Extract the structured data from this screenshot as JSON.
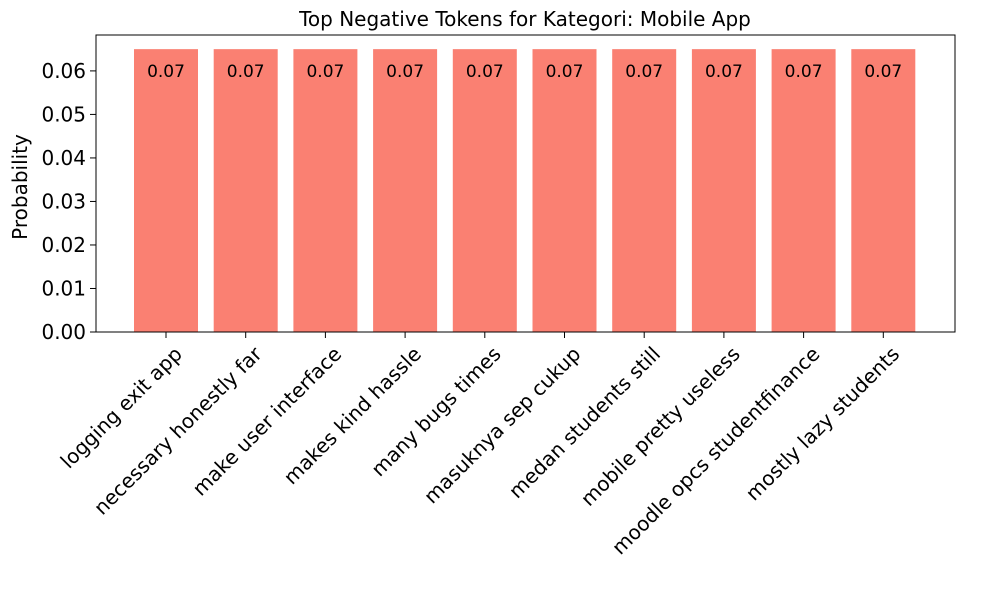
{
  "chart_data": {
    "type": "bar",
    "title": "Top Negative Tokens for Kategori: Mobile App",
    "xlabel": "",
    "ylabel": "Probability",
    "categories": [
      "logging exit app",
      "necessary honestly far",
      "make user interface",
      "makes kind hassle",
      "many bugs times",
      "masuknya sep cukup",
      "medan students still",
      "mobile pretty useless",
      "moodle opcs studentfinance",
      "mostly lazy students"
    ],
    "values": [
      0.065,
      0.065,
      0.065,
      0.065,
      0.065,
      0.065,
      0.065,
      0.065,
      0.065,
      0.065
    ],
    "data_labels": [
      "0.07",
      "0.07",
      "0.07",
      "0.07",
      "0.07",
      "0.07",
      "0.07",
      "0.07",
      "0.07",
      "0.07"
    ],
    "ylim": [
      0,
      0.06825
    ],
    "yticks": [
      "0.00",
      "0.01",
      "0.02",
      "0.03",
      "0.04",
      "0.05",
      "0.06"
    ],
    "grid": false,
    "bar_color": "#fa8072"
  }
}
